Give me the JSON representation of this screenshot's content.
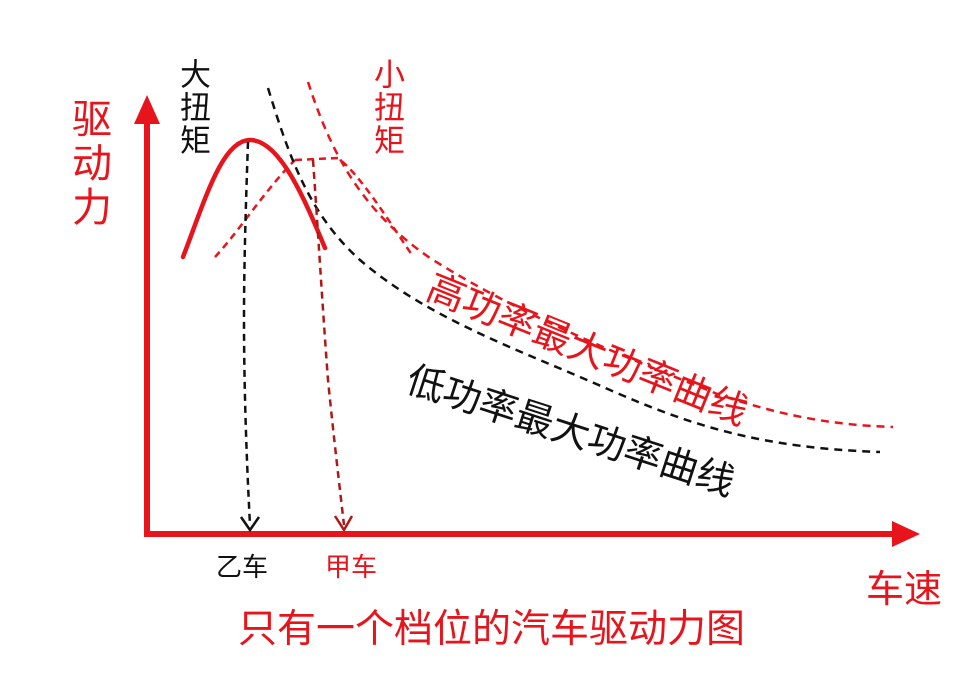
{
  "title": "只有一个档位的汽车驱动力图",
  "y_axis_label": "驱动力",
  "x_axis_label": "车速",
  "torque_labels": {
    "large": "大扭矩",
    "small": "小扭矩"
  },
  "curve_labels": {
    "high_power": "高功率最大功率曲线",
    "low_power": "低功率最大功率曲线"
  },
  "car_labels": {
    "yi": "乙车",
    "jia": "甲车"
  },
  "colors": {
    "red": "#e8141c",
    "dark_red": "#b01818",
    "black": "#111111"
  }
}
